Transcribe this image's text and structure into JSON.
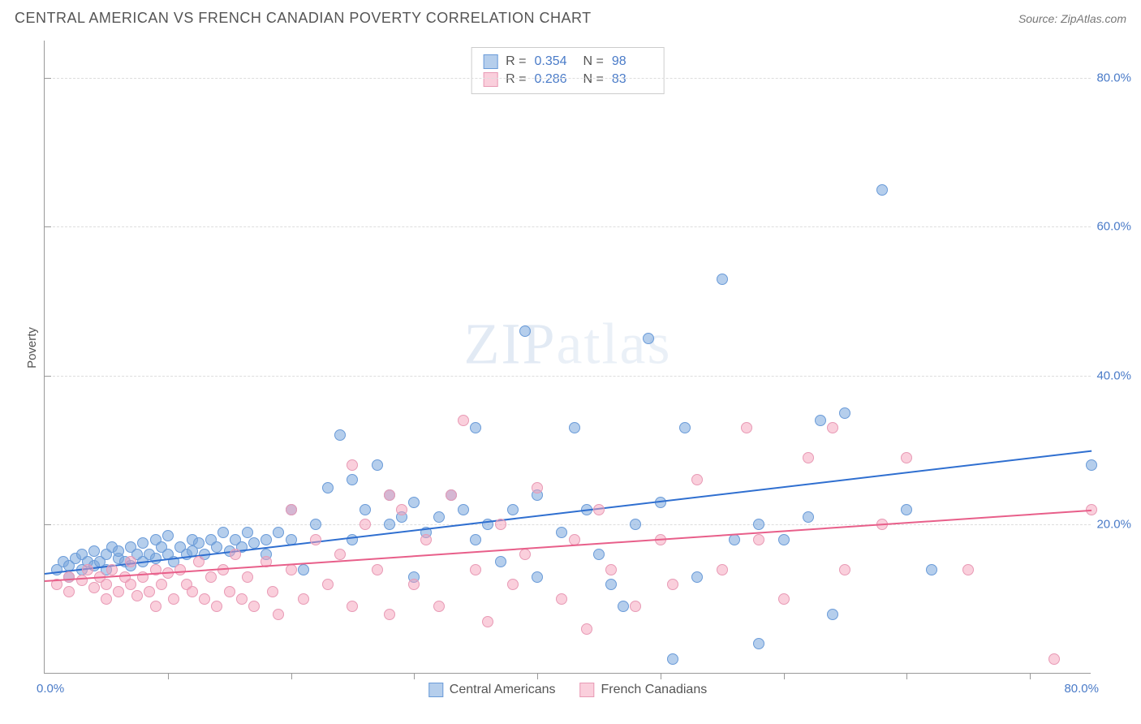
{
  "title": "CENTRAL AMERICAN VS FRENCH CANADIAN POVERTY CORRELATION CHART",
  "source_label": "Source:",
  "source_value": "ZipAtlas.com",
  "watermark": "ZIPatlas",
  "y_axis_title": "Poverty",
  "xlim": [
    0,
    85
  ],
  "ylim": [
    0,
    85
  ],
  "x_label_min": "0.0%",
  "x_label_max": "80.0%",
  "y_ticks": [
    {
      "v": 20,
      "label": "20.0%"
    },
    {
      "v": 40,
      "label": "40.0%"
    },
    {
      "v": 60,
      "label": "60.0%"
    },
    {
      "v": 80,
      "label": "80.0%"
    }
  ],
  "x_tick_positions": [
    10,
    20,
    30,
    40,
    50,
    60,
    70,
    80
  ],
  "grid_color": "#dddddd",
  "axis_color": "#999999",
  "background_color": "#ffffff",
  "series": [
    {
      "name": "Central Americans",
      "fill": "rgba(120,165,220,0.55)",
      "stroke": "#6a9bd8",
      "trend_color": "#2f6fd0",
      "R": "0.354",
      "N": "98",
      "trend": {
        "x1": 0,
        "y1": 13.5,
        "x2": 85,
        "y2": 30
      },
      "marker_radius": 7,
      "points": [
        [
          1,
          14
        ],
        [
          1.5,
          15
        ],
        [
          2,
          14.5
        ],
        [
          2,
          13
        ],
        [
          2.5,
          15.5
        ],
        [
          3,
          14
        ],
        [
          3,
          16
        ],
        [
          3.5,
          15
        ],
        [
          4,
          14.5
        ],
        [
          4,
          16.5
        ],
        [
          4.5,
          15
        ],
        [
          5,
          16
        ],
        [
          5,
          14
        ],
        [
          5.5,
          17
        ],
        [
          6,
          15.5
        ],
        [
          6,
          16.5
        ],
        [
          6.5,
          15
        ],
        [
          7,
          17
        ],
        [
          7,
          14.5
        ],
        [
          7.5,
          16
        ],
        [
          8,
          17.5
        ],
        [
          8,
          15
        ],
        [
          8.5,
          16
        ],
        [
          9,
          18
        ],
        [
          9,
          15.5
        ],
        [
          9.5,
          17
        ],
        [
          10,
          16
        ],
        [
          10,
          18.5
        ],
        [
          10.5,
          15
        ],
        [
          11,
          17
        ],
        [
          11.5,
          16
        ],
        [
          12,
          18
        ],
        [
          12,
          16.5
        ],
        [
          12.5,
          17.5
        ],
        [
          13,
          16
        ],
        [
          13.5,
          18
        ],
        [
          14,
          17
        ],
        [
          14.5,
          19
        ],
        [
          15,
          16.5
        ],
        [
          15.5,
          18
        ],
        [
          16,
          17
        ],
        [
          16.5,
          19
        ],
        [
          17,
          17.5
        ],
        [
          18,
          18
        ],
        [
          18,
          16
        ],
        [
          19,
          19
        ],
        [
          20,
          18
        ],
        [
          20,
          22
        ],
        [
          21,
          14
        ],
        [
          22,
          20
        ],
        [
          23,
          25
        ],
        [
          24,
          32
        ],
        [
          25,
          18
        ],
        [
          25,
          26
        ],
        [
          26,
          22
        ],
        [
          27,
          28
        ],
        [
          28,
          20
        ],
        [
          28,
          24
        ],
        [
          29,
          21
        ],
        [
          30,
          23
        ],
        [
          30,
          13
        ],
        [
          31,
          19
        ],
        [
          32,
          21
        ],
        [
          33,
          24
        ],
        [
          34,
          22
        ],
        [
          35,
          18
        ],
        [
          35,
          33
        ],
        [
          36,
          20
        ],
        [
          37,
          15
        ],
        [
          38,
          22
        ],
        [
          39,
          46
        ],
        [
          40,
          24
        ],
        [
          40,
          13
        ],
        [
          42,
          19
        ],
        [
          43,
          33
        ],
        [
          44,
          22
        ],
        [
          45,
          16
        ],
        [
          46,
          12
        ],
        [
          47,
          9
        ],
        [
          48,
          20
        ],
        [
          49,
          45
        ],
        [
          50,
          23
        ],
        [
          51,
          2
        ],
        [
          52,
          33
        ],
        [
          53,
          13
        ],
        [
          55,
          53
        ],
        [
          56,
          18
        ],
        [
          58,
          20
        ],
        [
          58,
          4
        ],
        [
          60,
          18
        ],
        [
          62,
          21
        ],
        [
          63,
          34
        ],
        [
          64,
          8
        ],
        [
          65,
          35
        ],
        [
          68,
          65
        ],
        [
          70,
          22
        ],
        [
          72,
          14
        ],
        [
          85,
          28
        ]
      ]
    },
    {
      "name": "French Canadians",
      "fill": "rgba(245,160,185,0.5)",
      "stroke": "#e89ab5",
      "trend_color": "#e85f8a",
      "R": "0.286",
      "N": "83",
      "trend": {
        "x1": 0,
        "y1": 12.5,
        "x2": 85,
        "y2": 22
      },
      "marker_radius": 7,
      "points": [
        [
          1,
          12
        ],
        [
          2,
          13
        ],
        [
          2,
          11
        ],
        [
          3,
          12.5
        ],
        [
          3.5,
          14
        ],
        [
          4,
          11.5
        ],
        [
          4.5,
          13
        ],
        [
          5,
          12
        ],
        [
          5,
          10
        ],
        [
          5.5,
          14
        ],
        [
          6,
          11
        ],
        [
          6.5,
          13
        ],
        [
          7,
          12
        ],
        [
          7,
          15
        ],
        [
          7.5,
          10.5
        ],
        [
          8,
          13
        ],
        [
          8.5,
          11
        ],
        [
          9,
          14
        ],
        [
          9,
          9
        ],
        [
          9.5,
          12
        ],
        [
          10,
          13.5
        ],
        [
          10.5,
          10
        ],
        [
          11,
          14
        ],
        [
          11.5,
          12
        ],
        [
          12,
          11
        ],
        [
          12.5,
          15
        ],
        [
          13,
          10
        ],
        [
          13.5,
          13
        ],
        [
          14,
          9
        ],
        [
          14.5,
          14
        ],
        [
          15,
          11
        ],
        [
          15.5,
          16
        ],
        [
          16,
          10
        ],
        [
          16.5,
          13
        ],
        [
          17,
          9
        ],
        [
          18,
          15
        ],
        [
          18.5,
          11
        ],
        [
          19,
          8
        ],
        [
          20,
          14
        ],
        [
          20,
          22
        ],
        [
          21,
          10
        ],
        [
          22,
          18
        ],
        [
          23,
          12
        ],
        [
          24,
          16
        ],
        [
          25,
          9
        ],
        [
          25,
          28
        ],
        [
          26,
          20
        ],
        [
          27,
          14
        ],
        [
          28,
          8
        ],
        [
          28,
          24
        ],
        [
          29,
          22
        ],
        [
          30,
          12
        ],
        [
          31,
          18
        ],
        [
          32,
          9
        ],
        [
          33,
          24
        ],
        [
          34,
          34
        ],
        [
          35,
          14
        ],
        [
          36,
          7
        ],
        [
          37,
          20
        ],
        [
          38,
          12
        ],
        [
          39,
          16
        ],
        [
          40,
          25
        ],
        [
          42,
          10
        ],
        [
          43,
          18
        ],
        [
          44,
          6
        ],
        [
          45,
          22
        ],
        [
          46,
          14
        ],
        [
          48,
          9
        ],
        [
          50,
          18
        ],
        [
          51,
          12
        ],
        [
          53,
          26
        ],
        [
          55,
          14
        ],
        [
          57,
          33
        ],
        [
          58,
          18
        ],
        [
          60,
          10
        ],
        [
          62,
          29
        ],
        [
          64,
          33
        ],
        [
          65,
          14
        ],
        [
          68,
          20
        ],
        [
          70,
          29
        ],
        [
          75,
          14
        ],
        [
          82,
          2
        ],
        [
          85,
          22
        ]
      ]
    }
  ]
}
